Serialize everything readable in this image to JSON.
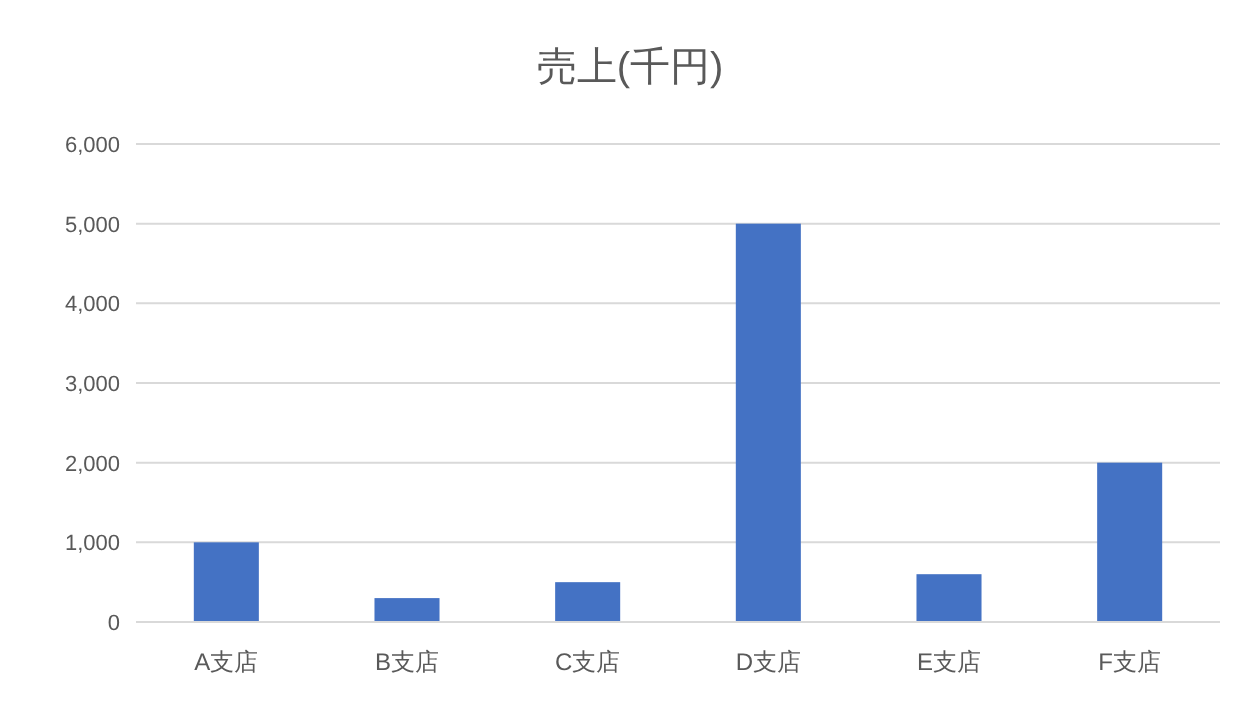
{
  "chart_data": {
    "type": "bar",
    "title": "売上(千円)",
    "categories": [
      "A支店",
      "B支店",
      "C支店",
      "D支店",
      "E支店",
      "F支店"
    ],
    "values": [
      1000,
      300,
      500,
      5000,
      600,
      2000
    ],
    "color": "#4472c4",
    "ylim": [
      0,
      6000
    ],
    "yticks": [
      {
        "value": 0,
        "label": "0"
      },
      {
        "value": 1000,
        "label": "1,000"
      },
      {
        "value": 2000,
        "label": "2,000"
      },
      {
        "value": 3000,
        "label": "3,000"
      },
      {
        "value": 4000,
        "label": "4,000"
      },
      {
        "value": 5000,
        "label": "5,000"
      },
      {
        "value": 6000,
        "label": "6,000"
      }
    ],
    "grid": "y"
  }
}
